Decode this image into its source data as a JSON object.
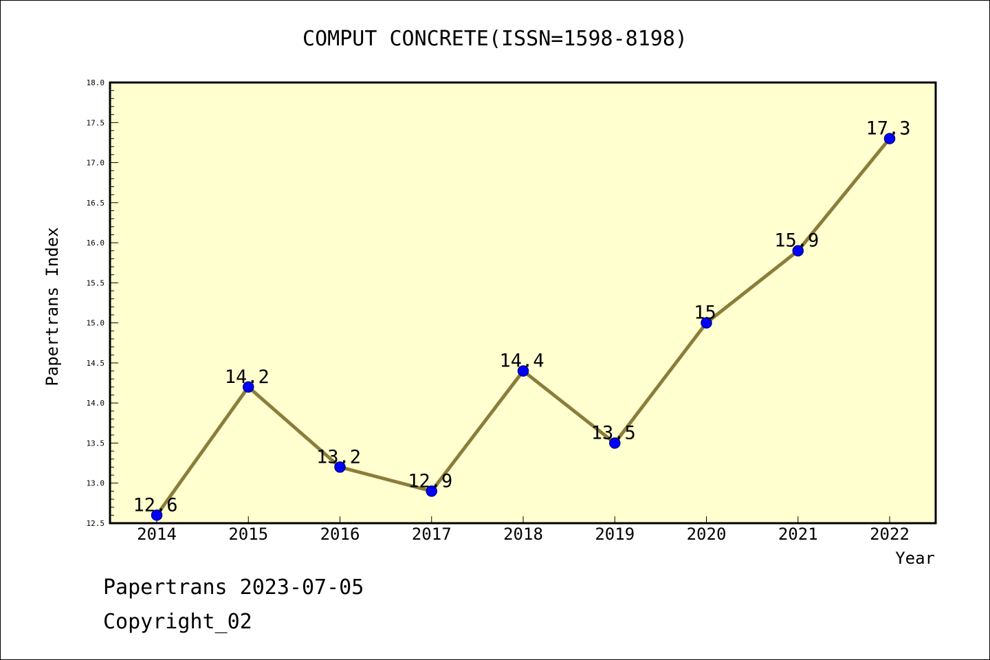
{
  "chart_data": {
    "type": "line",
    "title": "COMPUT CONCRETE(ISSN=1598-8198)",
    "xlabel": "Year",
    "ylabel": "Papertrans Index",
    "categories": [
      "2014",
      "2015",
      "2016",
      "2017",
      "2018",
      "2019",
      "2020",
      "2021",
      "2022"
    ],
    "series": [
      {
        "values": [
          12.6,
          14.2,
          13.2,
          12.9,
          14.4,
          13.5,
          15.0,
          15.9,
          17.3
        ]
      }
    ],
    "data_labels": [
      "12.6",
      "14.2",
      "13.2",
      "12.9",
      "14.4",
      "13.5",
      "15",
      "15.9",
      "17.3"
    ],
    "ylim": [
      12.5,
      18.0
    ],
    "y_ticks": [
      "12.5",
      "13.0",
      "13.5",
      "14.0",
      "14.5",
      "15.0",
      "15.5",
      "16.0",
      "16.5",
      "17.0",
      "17.5",
      "18.0"
    ],
    "grid": false,
    "colors": {
      "plot_background": "#ffffd0",
      "line": "#8b7d3a",
      "marker_fill": "#0000ff",
      "marker_edge": "#00008b"
    }
  },
  "footer": {
    "line1": "Papertrans 2023-07-05",
    "line2": "Copyright_02"
  }
}
